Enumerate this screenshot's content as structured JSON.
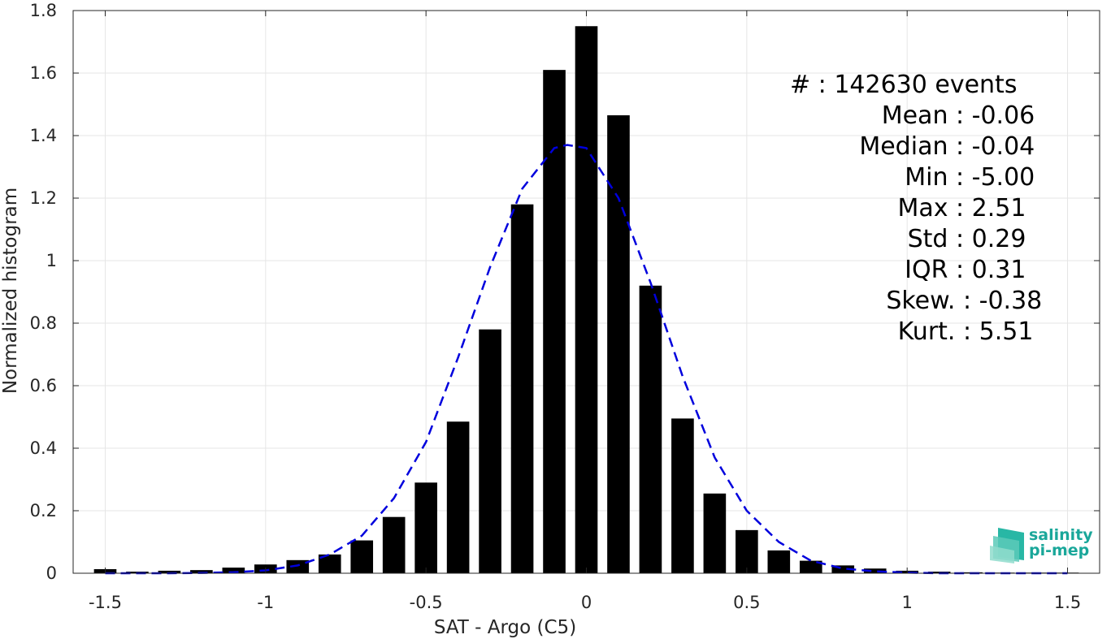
{
  "chart_data": {
    "type": "bar",
    "title": "",
    "xlabel": "SAT - Argo (C5)",
    "ylabel": "Normalized histogram",
    "xlim": [
      -1.6,
      1.6
    ],
    "ylim": [
      0,
      1.8
    ],
    "xticks": [
      -1.5,
      -1,
      -0.5,
      0,
      0.5,
      1,
      1.5
    ],
    "xtick_labels": [
      "-1.5",
      "-1",
      "-0.5",
      "0",
      "0.5",
      "1",
      "1.5"
    ],
    "yticks": [
      0,
      0.2,
      0.4,
      0.6,
      0.8,
      1,
      1.2,
      1.4,
      1.6,
      1.8
    ],
    "ytick_labels": [
      "0",
      "0.2",
      "0.4",
      "0.6",
      "0.8",
      "1",
      "1.2",
      "1.4",
      "1.6",
      "1.8"
    ],
    "grid": true,
    "bar_width": 0.07,
    "bar_color": "#000000",
    "bins": [
      -1.5,
      -1.4,
      -1.3,
      -1.2,
      -1.1,
      -1.0,
      -0.9,
      -0.8,
      -0.7,
      -0.6,
      -0.5,
      -0.4,
      -0.3,
      -0.2,
      -0.1,
      0.0,
      0.1,
      0.2,
      0.3,
      0.4,
      0.5,
      0.6,
      0.7,
      0.8,
      0.9,
      1.0,
      1.1,
      1.2,
      1.3,
      1.4,
      1.5
    ],
    "values": [
      0.013,
      0.005,
      0.008,
      0.01,
      0.018,
      0.028,
      0.042,
      0.06,
      0.105,
      0.18,
      0.29,
      0.485,
      0.78,
      1.18,
      1.61,
      1.75,
      1.465,
      0.92,
      0.495,
      0.255,
      0.138,
      0.073,
      0.04,
      0.025,
      0.015,
      0.008,
      0.005,
      0.003,
      0.002,
      0.002,
      0.002
    ],
    "fit_curve": {
      "style": "dashed",
      "color": "#0000dd",
      "x": [
        -1.5,
        -1.4,
        -1.3,
        -1.2,
        -1.1,
        -1.0,
        -0.9,
        -0.8,
        -0.7,
        -0.6,
        -0.5,
        -0.4,
        -0.3,
        -0.2,
        -0.1,
        -0.06,
        0.0,
        0.1,
        0.2,
        0.3,
        0.4,
        0.5,
        0.6,
        0.7,
        0.8,
        0.9,
        1.0,
        1.1,
        1.2,
        1.3,
        1.4,
        1.5
      ],
      "y": [
        0.0,
        0.0,
        0.0,
        0.001,
        0.003,
        0.009,
        0.025,
        0.06,
        0.12,
        0.24,
        0.42,
        0.69,
        0.98,
        1.23,
        1.36,
        1.37,
        1.36,
        1.2,
        0.93,
        0.63,
        0.37,
        0.2,
        0.1,
        0.04,
        0.015,
        0.006,
        0.002,
        0.0,
        0.0,
        0.0,
        0.0,
        0.0
      ]
    },
    "annotations": [
      "#  : 142630 events",
      "Mean : -0.06",
      "Median : -0.04",
      "Min : -5.00",
      "Max : 2.51",
      "Std : 0.29",
      "IQR : 0.31",
      "Skew. : -0.38",
      "Kurt. : 5.51"
    ]
  },
  "logo": {
    "line1": "salinity",
    "line2": "pi-mep",
    "color": "#1aa79a"
  }
}
